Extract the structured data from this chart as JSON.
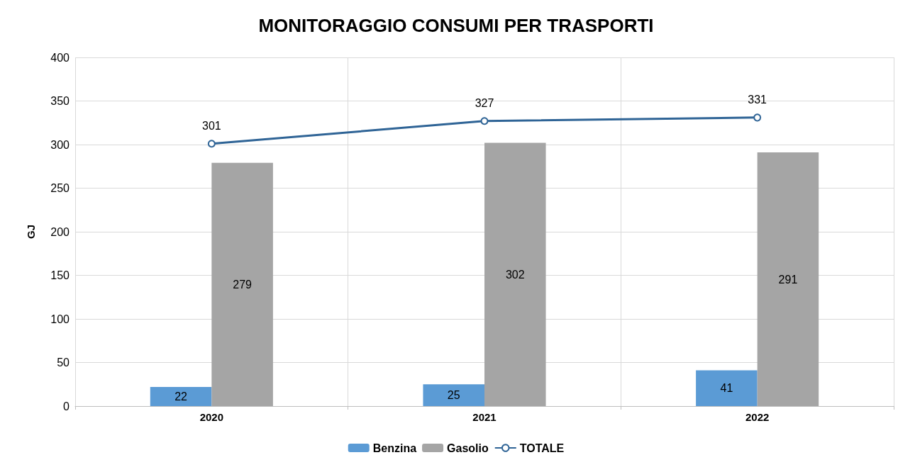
{
  "chart_data": {
    "type": "bar",
    "title": "MONITORAGGIO CONSUMI PER TRASPORTI",
    "ylabel": "GJ",
    "categories": [
      "2020",
      "2021",
      "2022"
    ],
    "series": [
      {
        "name": "Benzina",
        "color": "#5b9bd5",
        "values": [
          22,
          25,
          41
        ]
      },
      {
        "name": "Gasolio",
        "color": "#a5a5a5",
        "values": [
          279,
          302,
          291
        ]
      },
      {
        "name": "TOTALE",
        "type": "line",
        "color": "#2f6496",
        "values": [
          301,
          327,
          331
        ]
      }
    ],
    "ylim": [
      0,
      400
    ],
    "yticks": [
      0,
      50,
      100,
      150,
      200,
      250,
      300,
      350,
      400
    ],
    "grid": true,
    "legend": "bottom",
    "data_labels": true,
    "marker": "circle"
  }
}
